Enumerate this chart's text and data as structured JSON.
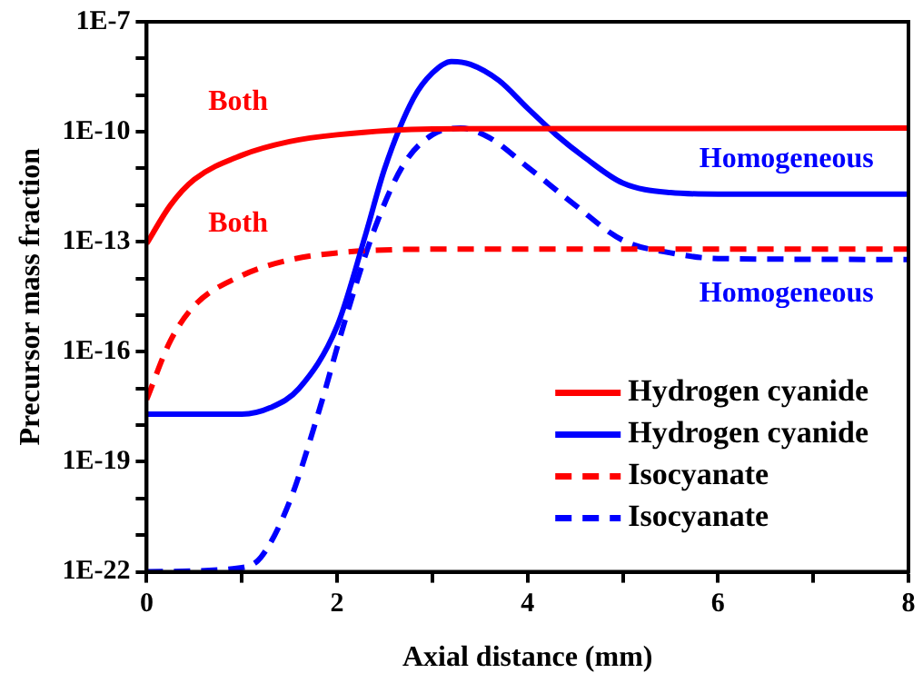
{
  "chart_data": {
    "type": "line",
    "xlabel": "Axial distance (mm)",
    "ylabel": "Precursor mass fraction",
    "log": "y",
    "xlim": [
      0,
      8
    ],
    "xticks": [
      0,
      {
        "value": 1,
        "label": null
      },
      2,
      {
        "value": 3,
        "label": null
      },
      4,
      {
        "value": 5,
        "label": null
      },
      6,
      {
        "value": 7,
        "label": null
      },
      8
    ],
    "ylim": [
      1e-22,
      1e-07
    ],
    "yticks": [
      {
        "value": 1e-22,
        "label": "1E-22"
      },
      {
        "value": 1e-21,
        "label": null
      },
      {
        "value": 1e-20,
        "label": null
      },
      {
        "value": 1e-19,
        "label": "1E-19"
      },
      {
        "value": 1e-18,
        "label": null
      },
      {
        "value": 1e-17,
        "label": null
      },
      {
        "value": 1e-16,
        "label": "1E-16"
      },
      {
        "value": 1e-15,
        "label": null
      },
      {
        "value": 1e-14,
        "label": null
      },
      {
        "value": 1e-13,
        "label": "1E-13"
      },
      {
        "value": 1e-12,
        "label": null
      },
      {
        "value": 1e-11,
        "label": null
      },
      {
        "value": 1e-10,
        "label": "1E-10"
      },
      {
        "value": 1e-09,
        "label": null
      },
      {
        "value": 1e-08,
        "label": null
      },
      {
        "value": 1e-07,
        "label": "1E-7"
      }
    ],
    "grid": false,
    "legend": "bottom right",
    "marker": "none",
    "series": [
      {
        "name": "Hydrogen cyanide",
        "color": "#ff0000",
        "line_style": "solid",
        "x": [
          0,
          0.25,
          0.5,
          1,
          1.5,
          2,
          3,
          8
        ],
        "values": [
          8.9e-14,
          1e-12,
          5e-12,
          2.3e-11,
          5.4e-11,
          8.3e-11,
          1.2e-10,
          1.26e-10
        ]
      },
      {
        "name": "Hydrogen cyanide",
        "color": "#0000ff",
        "line_style": "solid",
        "x": [
          0,
          1,
          1.3,
          1.6,
          2,
          2.3,
          2.5,
          2.8,
          3,
          3.2,
          3.4,
          3.7,
          4,
          4.3,
          4.6,
          5,
          5.5,
          6,
          8
        ],
        "values": [
          2e-18,
          2e-18,
          3e-18,
          1e-17,
          5e-16,
          1.6e-13,
          1e-11,
          8e-10,
          4e-09,
          8.3e-09,
          6.9e-09,
          2.5e-09,
          4.4e-10,
          8.3e-11,
          2e-11,
          4e-12,
          2.2e-12,
          2e-12,
          2e-12
        ]
      },
      {
        "name": "Isocyanate",
        "color": "#ff0000",
        "line_style": "dashed",
        "x": [
          0,
          0.25,
          0.5,
          1,
          1.5,
          2,
          3,
          8
        ],
        "values": [
          5e-18,
          2e-16,
          1.8e-15,
          1.2e-14,
          3.2e-14,
          5e-14,
          6.3e-14,
          6.3e-14
        ]
      },
      {
        "name": "Isocyanate",
        "color": "#0000ff",
        "line_style": "dashed",
        "x": [
          0,
          1,
          1.2,
          1.5,
          1.8,
          2.1,
          2.4,
          2.7,
          3,
          3.3,
          3.6,
          4,
          4.5,
          5,
          5.5,
          6,
          8
        ],
        "values": [
          1e-22,
          1.3e-22,
          2.5e-22,
          8e-21,
          2e-18,
          1e-15,
          2.5e-13,
          1.3e-11,
          8.3e-11,
          1.26e-10,
          6.9e-11,
          1.1e-11,
          1e-12,
          1.1e-13,
          5e-14,
          3.5e-14,
          3.3e-14
        ]
      }
    ],
    "annotations": [
      "Both",
      "Homogeneous",
      "Both",
      "Homogeneous"
    ]
  }
}
